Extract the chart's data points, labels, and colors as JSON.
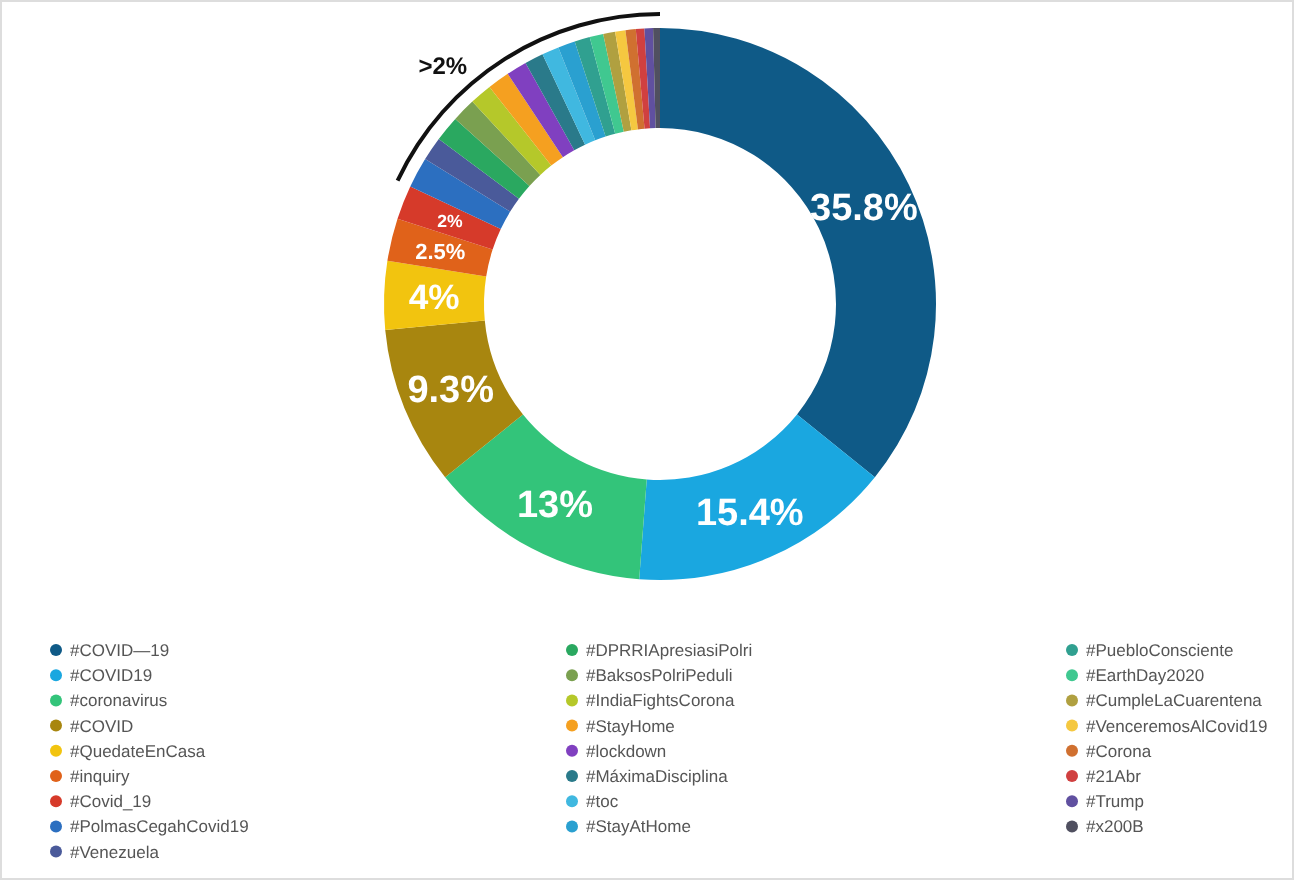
{
  "chart_data": {
    "type": "donut",
    "categories": [
      "#COVID—19",
      "#COVID19",
      "#coronavirus",
      "#COVID",
      "#QuedateEnCasa",
      "#inquiry",
      "#Covid_19",
      "#PolmasCegahCovid19",
      "#Venezuela",
      "#DPRRIApresiasiPolri",
      "#BaksosPolriPeduli",
      "#IndiaFightsCorona",
      "#StayHome",
      "#lockdown",
      "#MáximaDisciplina",
      "#toc",
      "#StayAtHome",
      "#PuebloConsciente",
      "#EarthDay2020",
      "#CumpleLaCuarentena",
      "#VenceremosAlCovid19",
      "#Corona",
      "#21Abr",
      "#Trump",
      "#x200B"
    ],
    "values": [
      35.8,
      15.4,
      13,
      9.3,
      4,
      2.5,
      2,
      1.8,
      1.4,
      1.5,
      1.4,
      1.3,
      1.3,
      1.2,
      1.1,
      1.0,
      1.0,
      0.9,
      0.8,
      0.7,
      0.6,
      0.6,
      0.5,
      0.5,
      0.4
    ],
    "colors": [
      "#0f5a87",
      "#1aa7e0",
      "#33c47a",
      "#a8860f",
      "#f2c40f",
      "#e0621a",
      "#d63a2a",
      "#2c6fc0",
      "#4a5a9a",
      "#2aa860",
      "#7aa050",
      "#b5c82a",
      "#f5a020",
      "#8040c0",
      "#2a7a8a",
      "#40b8e0",
      "#2aa0d0",
      "#30a090",
      "#40c890",
      "#b0a040",
      "#f5c840",
      "#d07030",
      "#d04040",
      "#6050a0",
      "#505060"
    ],
    "value_labels": [
      "35.8%",
      "15.4%",
      "13%",
      "9.3%",
      "4%",
      "2.5%",
      "2%",
      null,
      null,
      null,
      null,
      null,
      null,
      null,
      null,
      null,
      null,
      null,
      null,
      null,
      null,
      null,
      null,
      null,
      null
    ],
    "annotations": [
      ">2%"
    ],
    "legend": "bottom"
  }
}
